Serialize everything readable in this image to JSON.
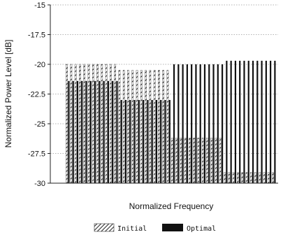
{
  "chart_data": {
    "type": "bar",
    "title": "",
    "xlabel": "Normalized Frequency",
    "ylabel": "Normalized Power Level [dB]",
    "ylim": [
      -30,
      -15
    ],
    "yticks": [
      -15,
      -17.5,
      -20,
      -22.5,
      -25,
      -27.5,
      -30
    ],
    "ytick_labels": [
      "-15",
      "-17.5",
      "-20",
      "-22.5",
      "-25",
      "-27.5",
      "-30"
    ],
    "grid": true,
    "legend_position": "bottom-center",
    "series": [
      {
        "name": "Initial",
        "pattern": "hatched",
        "color": "#333333",
        "values": [
          -20,
          -20,
          -20,
          -20,
          -20,
          -20,
          -20,
          -20,
          -20,
          -20,
          -20,
          -20,
          -20.5,
          -20.5,
          -20.5,
          -20.5,
          -20.5,
          -20.5,
          -20.5,
          -20.5,
          -20.5,
          -20.5,
          -20.5,
          -20.5,
          -26.2,
          -26.2,
          -26.2,
          -26.2,
          -26.2,
          -26.2,
          -26.2,
          -26.2,
          -26.2,
          -26.2,
          -26.2,
          -26.2,
          -29.1,
          -29.1,
          -29.1,
          -29.1,
          -29.1,
          -29.1,
          -29.1,
          -29.1,
          -29.1,
          -29.1,
          -29.1,
          -29.1
        ]
      },
      {
        "name": "Optimal",
        "pattern": "solid",
        "color": "#111111",
        "values": [
          -21.4,
          -21.4,
          -21.4,
          -21.4,
          -21.4,
          -21.4,
          -21.4,
          -21.4,
          -21.4,
          -21.4,
          -21.4,
          -21.4,
          -23.0,
          -23.0,
          -23.0,
          -23.0,
          -23.0,
          -23.0,
          -23.0,
          -23.0,
          -23.0,
          -23.0,
          -23.0,
          -23.0,
          -20.0,
          -20.0,
          -20.0,
          -20.0,
          -20.0,
          -20.0,
          -20.0,
          -20.0,
          -20.0,
          -20.0,
          -20.0,
          -20.0,
          -19.7,
          -19.7,
          -19.7,
          -19.7,
          -19.7,
          -19.7,
          -19.7,
          -19.7,
          -19.7,
          -19.7,
          -19.7,
          -19.7
        ]
      }
    ]
  }
}
